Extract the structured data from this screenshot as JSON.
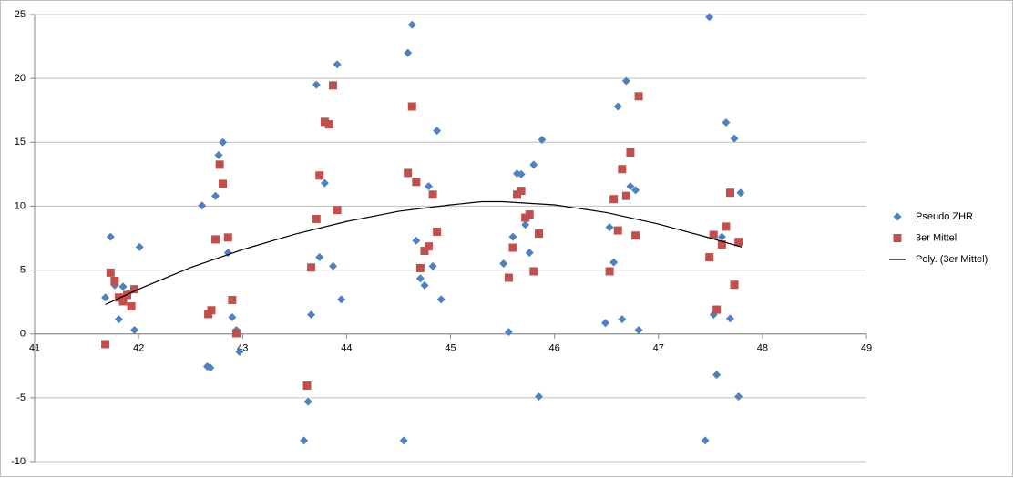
{
  "chart_data": {
    "type": "scatter",
    "xlim": [
      41,
      49
    ],
    "xticks": [
      41,
      42,
      43,
      44,
      45,
      46,
      47,
      48,
      49
    ],
    "ylim": [
      -10,
      25
    ],
    "yticks": [
      -10,
      -5,
      0,
      5,
      10,
      15,
      20,
      25
    ],
    "grid": true,
    "legend": "right",
    "series": [
      {
        "name": "Pseudo ZHR",
        "type": "scatter",
        "marker": "diamond",
        "color": "#4f81bd",
        "x": [
          41.68,
          41.73,
          41.77,
          41.81,
          41.85,
          41.9,
          41.96,
          42.01,
          42.61,
          42.66,
          42.69,
          42.74,
          42.77,
          42.81,
          42.86,
          42.9,
          42.94,
          42.97,
          43.59,
          43.63,
          43.66,
          43.71,
          43.74,
          43.79,
          43.87,
          43.91,
          43.95,
          44.55,
          44.59,
          44.63,
          44.67,
          44.71,
          44.75,
          44.79,
          44.83,
          44.87,
          44.91,
          45.51,
          45.56,
          45.6,
          45.64,
          45.68,
          45.72,
          45.76,
          45.8,
          45.85,
          45.88,
          46.49,
          46.53,
          46.57,
          46.61,
          46.65,
          46.69,
          46.73,
          46.78,
          46.81,
          47.45,
          47.49,
          47.53,
          47.56,
          47.61,
          47.65,
          47.69,
          47.73,
          47.77,
          47.79
        ],
        "values": [
          2.85,
          7.6,
          3.8,
          1.15,
          3.7,
          3.2,
          0.3,
          6.8,
          10.05,
          -2.55,
          -2.65,
          10.8,
          14.0,
          15.0,
          6.35,
          1.3,
          0.3,
          -1.4,
          -8.35,
          -5.3,
          1.5,
          19.5,
          6.0,
          11.8,
          5.3,
          21.1,
          2.7,
          -8.35,
          22.0,
          24.2,
          7.3,
          4.35,
          3.8,
          11.55,
          5.3,
          15.9,
          2.7,
          5.5,
          0.15,
          7.6,
          12.55,
          12.5,
          8.55,
          6.35,
          13.25,
          -4.9,
          15.2,
          0.85,
          8.35,
          5.6,
          17.8,
          1.15,
          19.8,
          11.55,
          11.25,
          0.3,
          -8.35,
          24.8,
          1.5,
          -3.2,
          7.6,
          16.55,
          1.2,
          15.3,
          -4.9,
          11.05
        ]
      },
      {
        "name": "3er Mittel",
        "type": "scatter",
        "marker": "square",
        "color": "#c0504d",
        "x": [
          41.68,
          41.73,
          41.77,
          41.81,
          41.85,
          41.89,
          41.93,
          41.96,
          42.67,
          42.7,
          42.74,
          42.78,
          42.81,
          42.86,
          42.9,
          42.94,
          43.62,
          43.66,
          43.71,
          43.74,
          43.79,
          43.83,
          43.87,
          43.91,
          44.59,
          44.63,
          44.67,
          44.71,
          44.75,
          44.79,
          44.83,
          44.87,
          45.56,
          45.6,
          45.64,
          45.68,
          45.72,
          45.76,
          45.8,
          45.85,
          46.53,
          46.57,
          46.61,
          46.65,
          46.69,
          46.73,
          46.78,
          46.81,
          47.49,
          47.53,
          47.56,
          47.61,
          47.65,
          47.69,
          47.73,
          47.77
        ],
        "values": [
          -0.8,
          4.8,
          4.15,
          2.85,
          2.55,
          3.05,
          2.15,
          3.5,
          1.55,
          1.85,
          7.4,
          13.25,
          11.75,
          7.55,
          2.65,
          0.05,
          -4.05,
          5.2,
          9.0,
          12.4,
          16.6,
          16.4,
          19.45,
          9.7,
          12.6,
          17.8,
          11.9,
          5.15,
          6.5,
          6.85,
          10.9,
          8.0,
          4.4,
          6.75,
          10.9,
          11.2,
          9.1,
          9.35,
          4.9,
          7.85,
          4.9,
          10.55,
          8.1,
          12.9,
          10.8,
          14.2,
          7.7,
          18.6,
          6.0,
          7.75,
          1.9,
          7.0,
          8.4,
          11.05,
          3.85,
          7.2
        ]
      },
      {
        "name": "Poly. (3er Mittel)",
        "type": "line",
        "color": "#000000",
        "x": [
          41.68,
          42,
          42.5,
          43,
          43.5,
          44,
          44.5,
          45,
          45.3,
          45.5,
          46,
          46.5,
          47,
          47.5,
          47.8
        ],
        "values": [
          2.3,
          3.5,
          5.2,
          6.6,
          7.8,
          8.8,
          9.6,
          10.1,
          10.35,
          10.35,
          10.1,
          9.5,
          8.6,
          7.5,
          6.8
        ]
      }
    ]
  }
}
